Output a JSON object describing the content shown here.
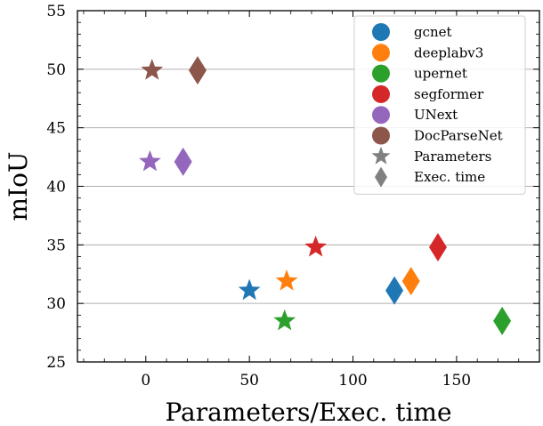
{
  "chart_data": {
    "type": "scatter",
    "title": "",
    "xlabel": "Parameters/Exec. time",
    "ylabel": "mIoU",
    "xlim": [
      -33,
      190
    ],
    "ylim": [
      25,
      55
    ],
    "xticks": [
      0,
      50,
      100,
      150
    ],
    "yticks": [
      25,
      30,
      35,
      40,
      45,
      50,
      55
    ],
    "grid": "horizontal",
    "legend_position": "top-right",
    "series": [
      {
        "name": "gcnet",
        "color": "#1f77b4",
        "parameters": {
          "x": 50,
          "y": 31.1
        },
        "exec_time": {
          "x": 120,
          "y": 31.1
        }
      },
      {
        "name": "deeplabv3",
        "color": "#ff7f0e",
        "parameters": {
          "x": 68,
          "y": 31.9
        },
        "exec_time": {
          "x": 128,
          "y": 31.9
        }
      },
      {
        "name": "upernet",
        "color": "#2ca02c",
        "parameters": {
          "x": 67,
          "y": 28.5
        },
        "exec_time": {
          "x": 172,
          "y": 28.5
        }
      },
      {
        "name": "segformer",
        "color": "#d62728",
        "parameters": {
          "x": 82,
          "y": 34.8
        },
        "exec_time": {
          "x": 141,
          "y": 34.8
        }
      },
      {
        "name": "UNext",
        "color": "#9467bd",
        "parameters": {
          "x": 2,
          "y": 42.1
        },
        "exec_time": {
          "x": 18,
          "y": 42.1
        }
      },
      {
        "name": "DocParseNet",
        "color": "#8c564b",
        "parameters": {
          "x": 3,
          "y": 49.9
        },
        "exec_time": {
          "x": 25,
          "y": 49.9
        }
      }
    ],
    "marker_legend": [
      {
        "label": "Parameters",
        "marker": "star",
        "color": "#808080"
      },
      {
        "label": "Exec. time",
        "marker": "diamond",
        "color": "#808080"
      }
    ]
  }
}
